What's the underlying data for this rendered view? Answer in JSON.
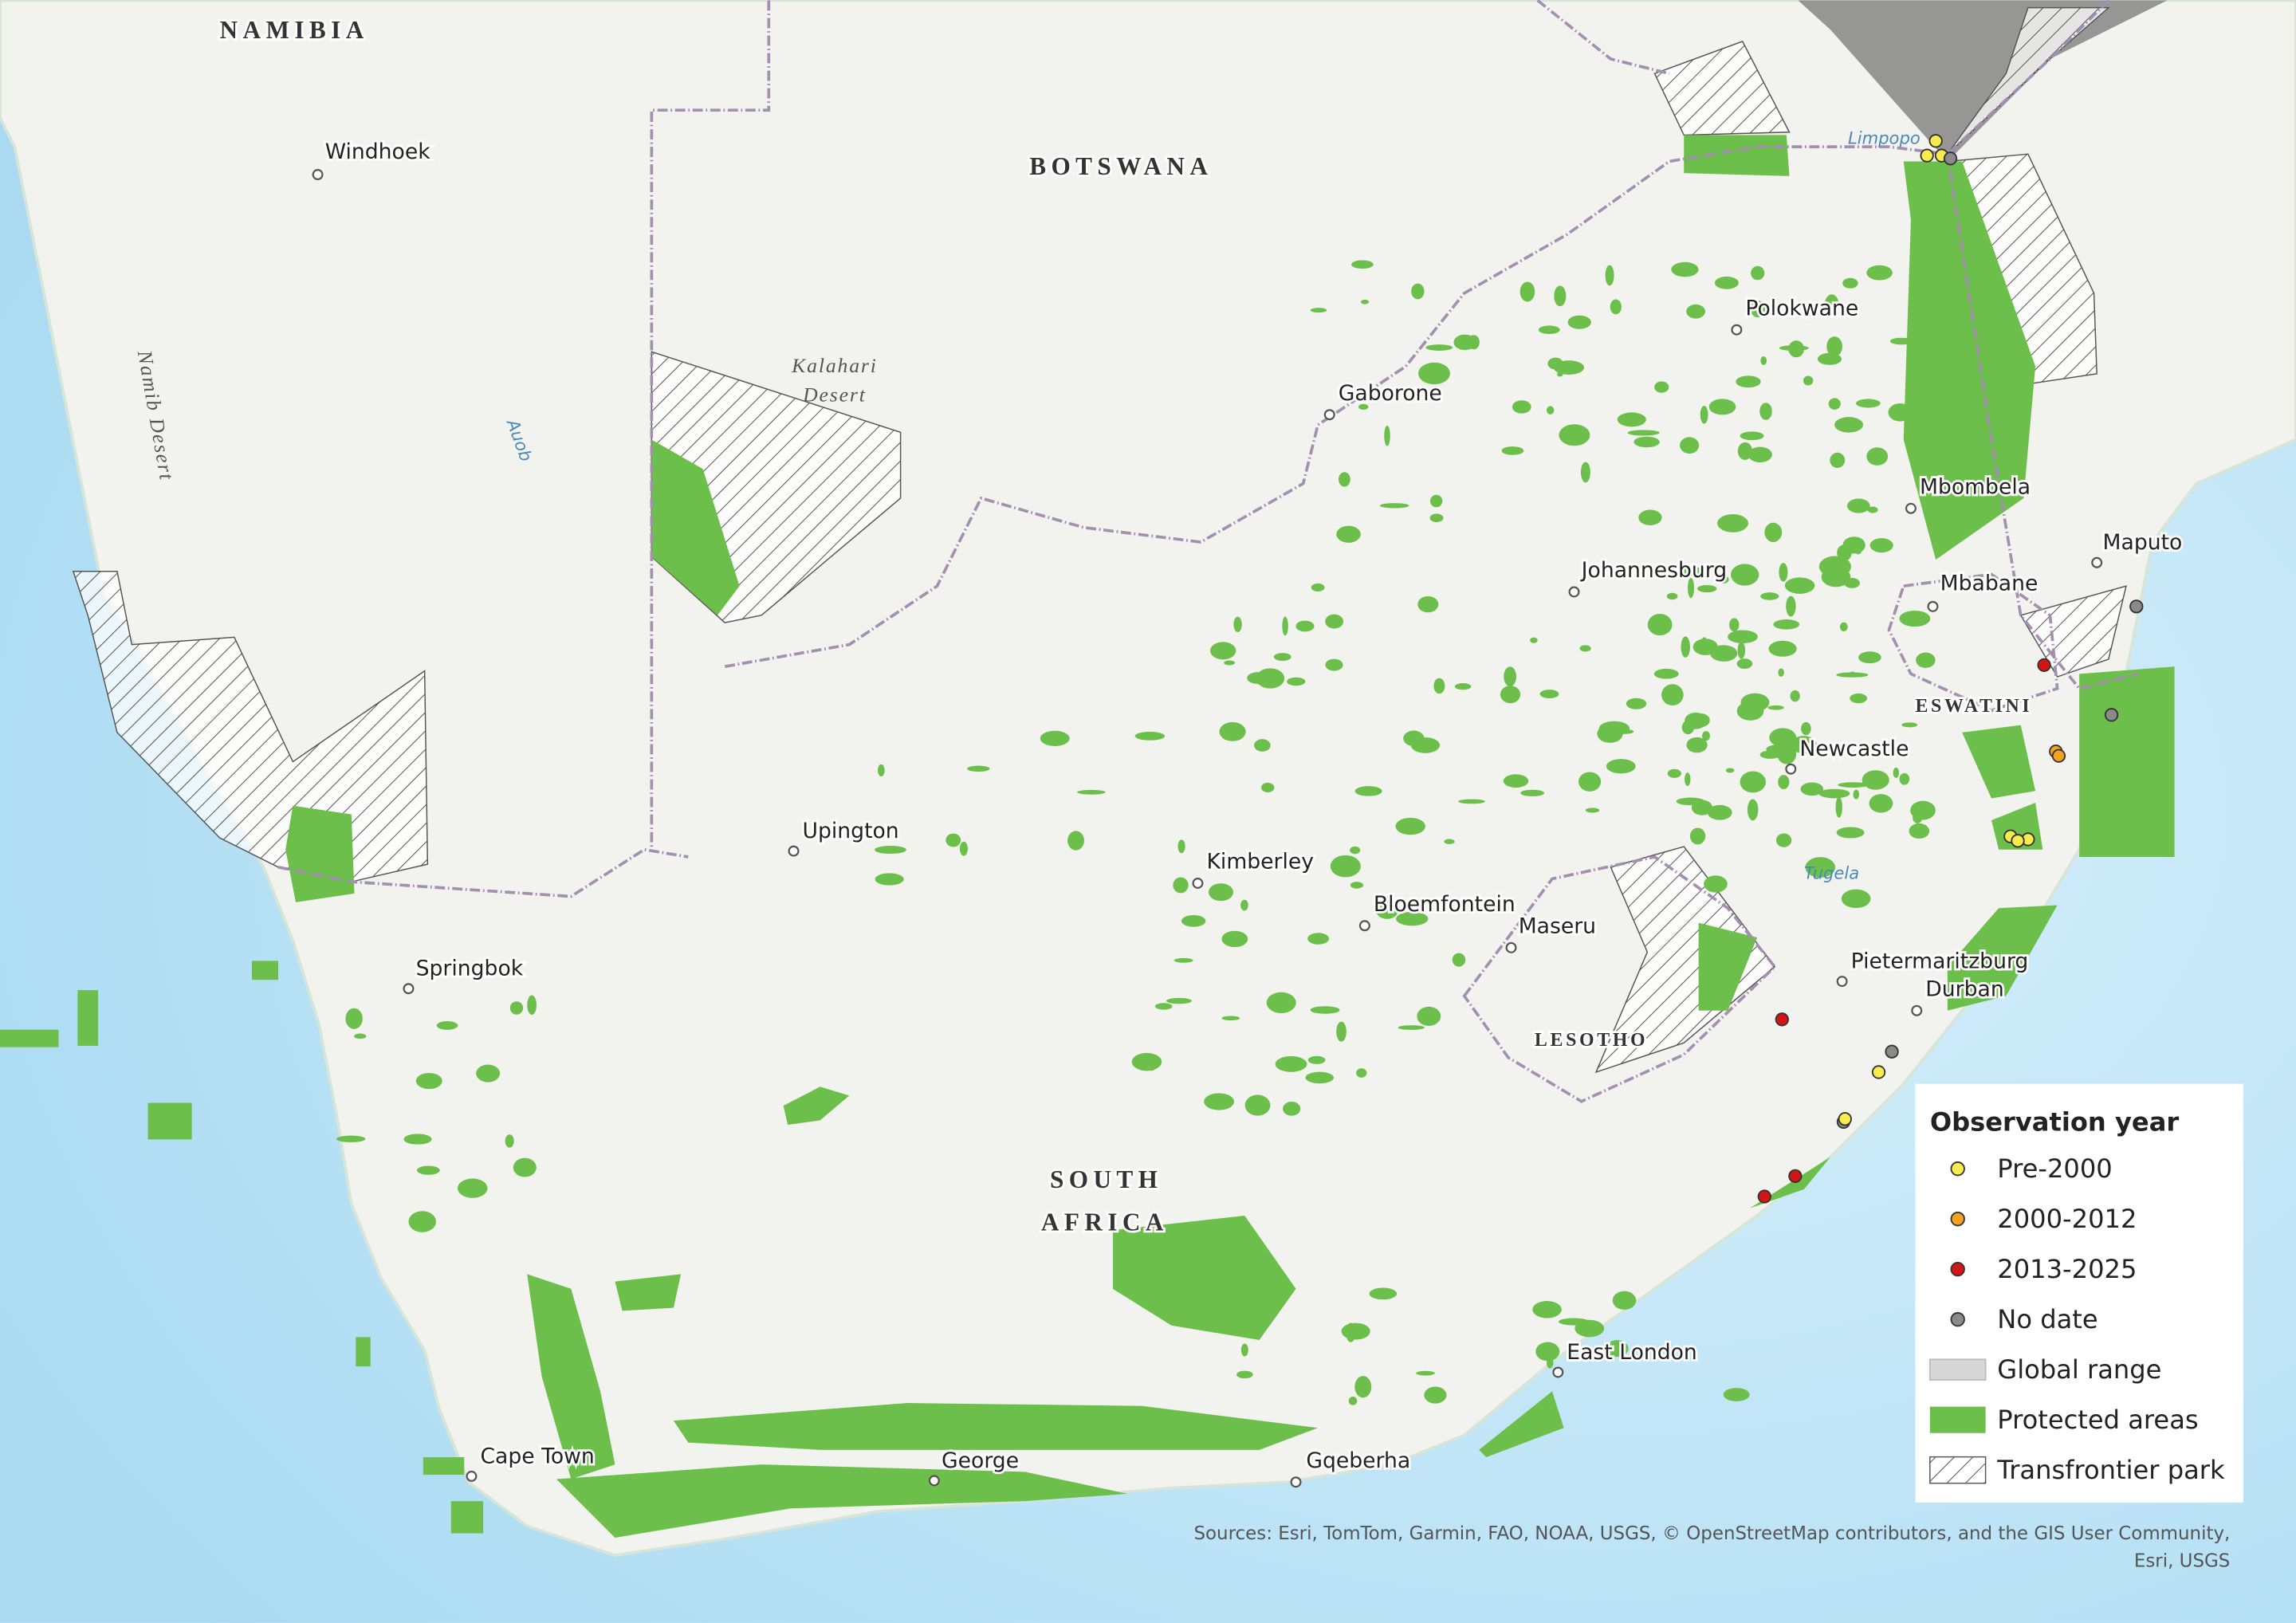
{
  "countries": {
    "namibia": "NAMIBIA",
    "botswana": "BOTSWANA",
    "south_africa": [
      "SOUTH",
      "AFRICA"
    ],
    "eswatini": "ESWATINI",
    "lesotho": "LESOTHO"
  },
  "cities": [
    "Windhoek",
    "Gaborone",
    "Polokwane",
    "Mbombela",
    "Maputo",
    "Mbabane",
    "Johannesburg",
    "Newcastle",
    "Upington",
    "Kimberley",
    "Bloemfontein",
    "Maseru",
    "Pietermaritzburg",
    "Durban",
    "Springbok",
    "East London",
    "Cape Town",
    "George",
    "Gqeberha"
  ],
  "features": {
    "namib_desert": "Namib Desert",
    "kalahari_desert": [
      "Kalahari",
      "Desert"
    ],
    "auob": "Auob",
    "limpopo": "Limpopo",
    "tugela": "Tugela"
  },
  "legend": {
    "title": "Observation year",
    "items": [
      "Pre-2000",
      "2000-2012",
      "2013-2025",
      "No date",
      "Global range",
      "Protected areas",
      "Transfrontier park"
    ]
  },
  "sources": [
    "Sources: Esri, TomTom, Garmin, FAO, NOAA, USGS, © OpenStreetMap contributors, and the GIS User Community,",
    "Esri, USGS"
  ]
}
